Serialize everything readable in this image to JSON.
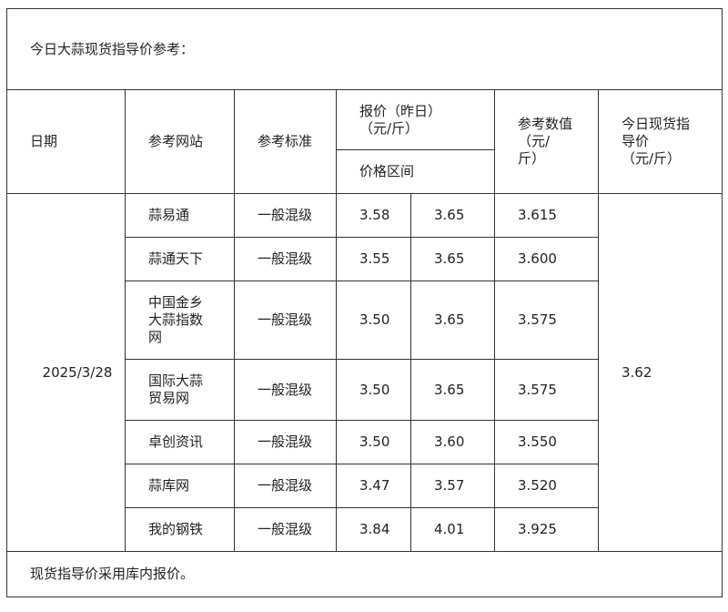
{
  "title": "今日大蒜现货指导价参考：",
  "headers": {
    "date": "日期",
    "site": "参考网站",
    "standard": "参考标准",
    "quote": "报价（昨日）\n（元/斤）",
    "range": "价格区间",
    "ref_value": "参考数值\n（元/\n斤）",
    "guide": "今日现货指\n导价\n（元/斤）"
  },
  "date": "2025/3/28",
  "guide_price": "3.62",
  "rows": [
    {
      "site": "蒜易通",
      "standard": "一般混级",
      "low": "3.58",
      "high": "3.65",
      "ref": "3.615"
    },
    {
      "site": "蒜通天下",
      "standard": "一般混级",
      "low": "3.55",
      "high": "3.65",
      "ref": "3.600"
    },
    {
      "site": "中国金乡\n大蒜指数\n网",
      "standard": "一般混级",
      "low": "3.50",
      "high": "3.65",
      "ref": "3.575"
    },
    {
      "site": "国际大蒜\n贸易网",
      "standard": "一般混级",
      "low": "3.50",
      "high": "3.65",
      "ref": "3.575"
    },
    {
      "site": "卓创资讯",
      "standard": "一般混级",
      "low": "3.50",
      "high": "3.60",
      "ref": "3.550"
    },
    {
      "site": "蒜库网",
      "standard": "一般混级",
      "low": "3.47",
      "high": "3.57",
      "ref": "3.520"
    },
    {
      "site": "我的钢铁",
      "standard": "一般混级",
      "low": "3.84",
      "high": "4.01",
      "ref": "3.925"
    }
  ],
  "footer": "现货指导价采用库内报价。"
}
